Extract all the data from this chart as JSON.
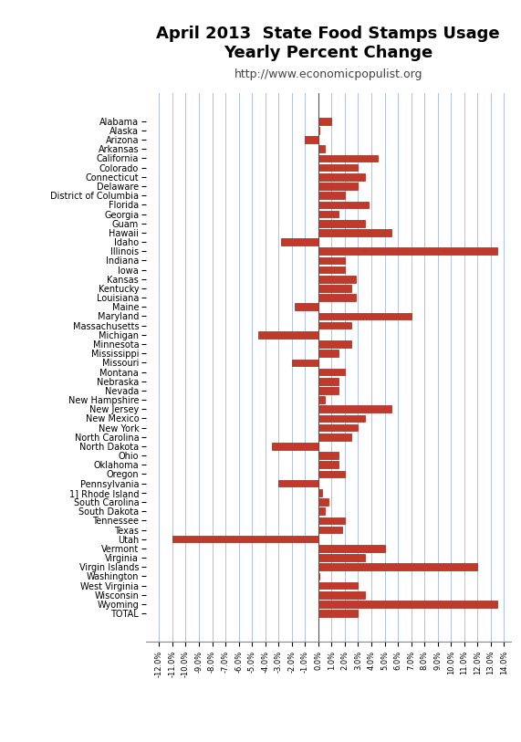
{
  "title": "April 2013  State Food Stamps Usage\nYearly Percent Change",
  "subtitle": "http://www.economicpopulist.org",
  "states": [
    "Alabama",
    "Alaska",
    "Arizona",
    "Arkansas",
    "California",
    "Colorado",
    "Connecticut",
    "Delaware",
    "District of Columbia",
    "Florida",
    "Georgia",
    "Guam",
    "Hawaii",
    "Idaho",
    "Illinois",
    "Indiana",
    "Iowa",
    "Kansas",
    "Kentucky",
    "Louisiana",
    "Maine",
    "Maryland",
    "Massachusetts",
    "Michigan",
    "Minnesota",
    "Mississippi",
    "Missouri",
    "Montana",
    "Nebraska",
    "Nevada",
    "New Hampshire",
    "New Jersey",
    "New Mexico",
    "New York",
    "North Carolina",
    "North Dakota",
    "Ohio",
    "Oklahoma",
    "Oregon",
    "Pennsylvania",
    "1] Rhode Island",
    "South Carolina",
    "South Dakota",
    "Tennessee",
    "Texas",
    "Utah",
    "Vermont",
    "Virginia",
    "Virgin Islands",
    "Washington",
    "West Virginia",
    "Wisconsin",
    "Wyoming",
    "TOTAL"
  ],
  "values": [
    1.0,
    0.1,
    -1.0,
    0.5,
    4.5,
    3.0,
    3.5,
    3.0,
    2.0,
    3.8,
    1.5,
    3.5,
    5.5,
    -2.8,
    13.5,
    2.0,
    2.0,
    2.8,
    2.5,
    2.8,
    -1.8,
    7.0,
    2.5,
    -4.5,
    2.5,
    1.5,
    -2.0,
    2.0,
    1.5,
    1.5,
    0.5,
    5.5,
    3.5,
    3.0,
    2.5,
    -3.5,
    1.5,
    1.5,
    2.0,
    -3.0,
    0.3,
    0.8,
    0.5,
    2.0,
    1.8,
    -11.0,
    5.0,
    3.5,
    12.0,
    0.1,
    3.0,
    3.5,
    13.5,
    3.0
  ],
  "bar_color": "#C1392B",
  "bar_edge_color": "#96281B",
  "xlim": [
    -13.0,
    14.5
  ],
  "background_color": "#FFFFFF",
  "grid_color": "#B0C4DE",
  "title_fontsize": 13,
  "subtitle_fontsize": 9,
  "label_fontsize": 7.0
}
